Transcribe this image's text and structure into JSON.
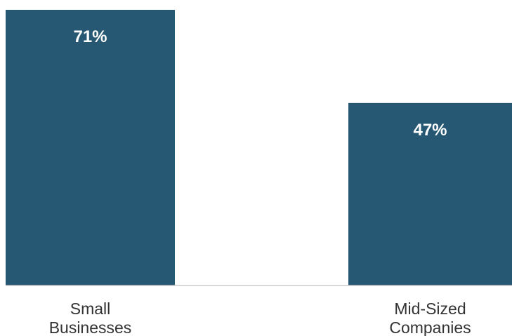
{
  "chart_data": {
    "type": "bar",
    "categories": [
      "Small Businesses",
      "Mid-Sized Companies"
    ],
    "category_label_lines": [
      [
        "Small",
        "Businesses"
      ],
      [
        "Mid-Sized",
        "Companies"
      ]
    ],
    "values": [
      71,
      47
    ],
    "value_labels": [
      "71%",
      "47%"
    ],
    "ylim": [
      0,
      100
    ],
    "grid": false,
    "legend": "none",
    "colors": {
      "bar": "#275873",
      "value_label": "#ffffff",
      "axis": "#cccccc",
      "category_label": "#333333"
    }
  }
}
